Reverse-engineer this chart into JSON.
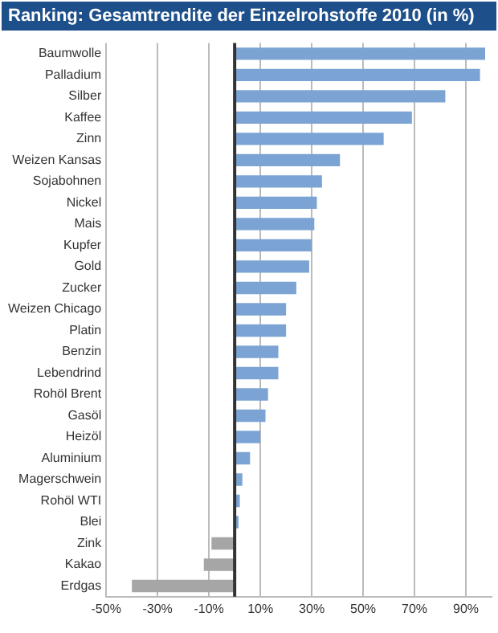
{
  "chart_data": {
    "type": "bar",
    "orientation": "horizontal",
    "title": "Ranking: Gesamtrendite der Einzelrohstoffe 2010 (in %)",
    "categories": [
      "Baumwolle",
      "Palladium",
      "Silber",
      "Kaffee",
      "Zinn",
      "Weizen Kansas",
      "Sojabohnen",
      "Nickel",
      "Mais",
      "Kupfer",
      "Gold",
      "Zucker",
      "Weizen Chicago",
      "Platin",
      "Benzin",
      "Lebendrind",
      "Rohöl Brent",
      "Gasöl",
      "Heizöl",
      "Aluminium",
      "Magerschwein",
      "Rohöl WTI",
      "Blei",
      "Zink",
      "Kakao",
      "Erdgas"
    ],
    "values": [
      97.5,
      95.5,
      82,
      69,
      58,
      41,
      34,
      32,
      31,
      30,
      29,
      24,
      20,
      20,
      17,
      17,
      13,
      12,
      10,
      6,
      3,
      2,
      1.5,
      -9,
      -12,
      -40
    ],
    "colors": [
      "#7ba4d4",
      "#7ba4d4",
      "#7ba4d4",
      "#7ba4d4",
      "#7ba4d4",
      "#7ba4d4",
      "#7ba4d4",
      "#7ba4d4",
      "#7ba4d4",
      "#7ba4d4",
      "#7ba4d4",
      "#7ba4d4",
      "#7ba4d4",
      "#7ba4d4",
      "#7ba4d4",
      "#7ba4d4",
      "#7ba4d4",
      "#7ba4d4",
      "#7ba4d4",
      "#7ba4d4",
      "#7ba4d4",
      "#7ba4d4",
      "#7ba4d4",
      "#a6a6a6",
      "#a6a6a6",
      "#a6a6a6"
    ],
    "xlim": [
      -50,
      100
    ],
    "xticks": [
      {
        "value": -50,
        "label": "-50%"
      },
      {
        "value": -30,
        "label": "-30%"
      },
      {
        "value": -10,
        "label": "-10%"
      },
      {
        "value": 10,
        "label": "10%"
      },
      {
        "value": 30,
        "label": "30%"
      },
      {
        "value": 50,
        "label": "50%"
      },
      {
        "value": 70,
        "label": "70%"
      },
      {
        "value": 90,
        "label": "90%"
      }
    ],
    "grid": "x",
    "ref_lines": [
      {
        "axis": "x",
        "value": 0,
        "color": "#333333"
      }
    ],
    "legend": false
  }
}
